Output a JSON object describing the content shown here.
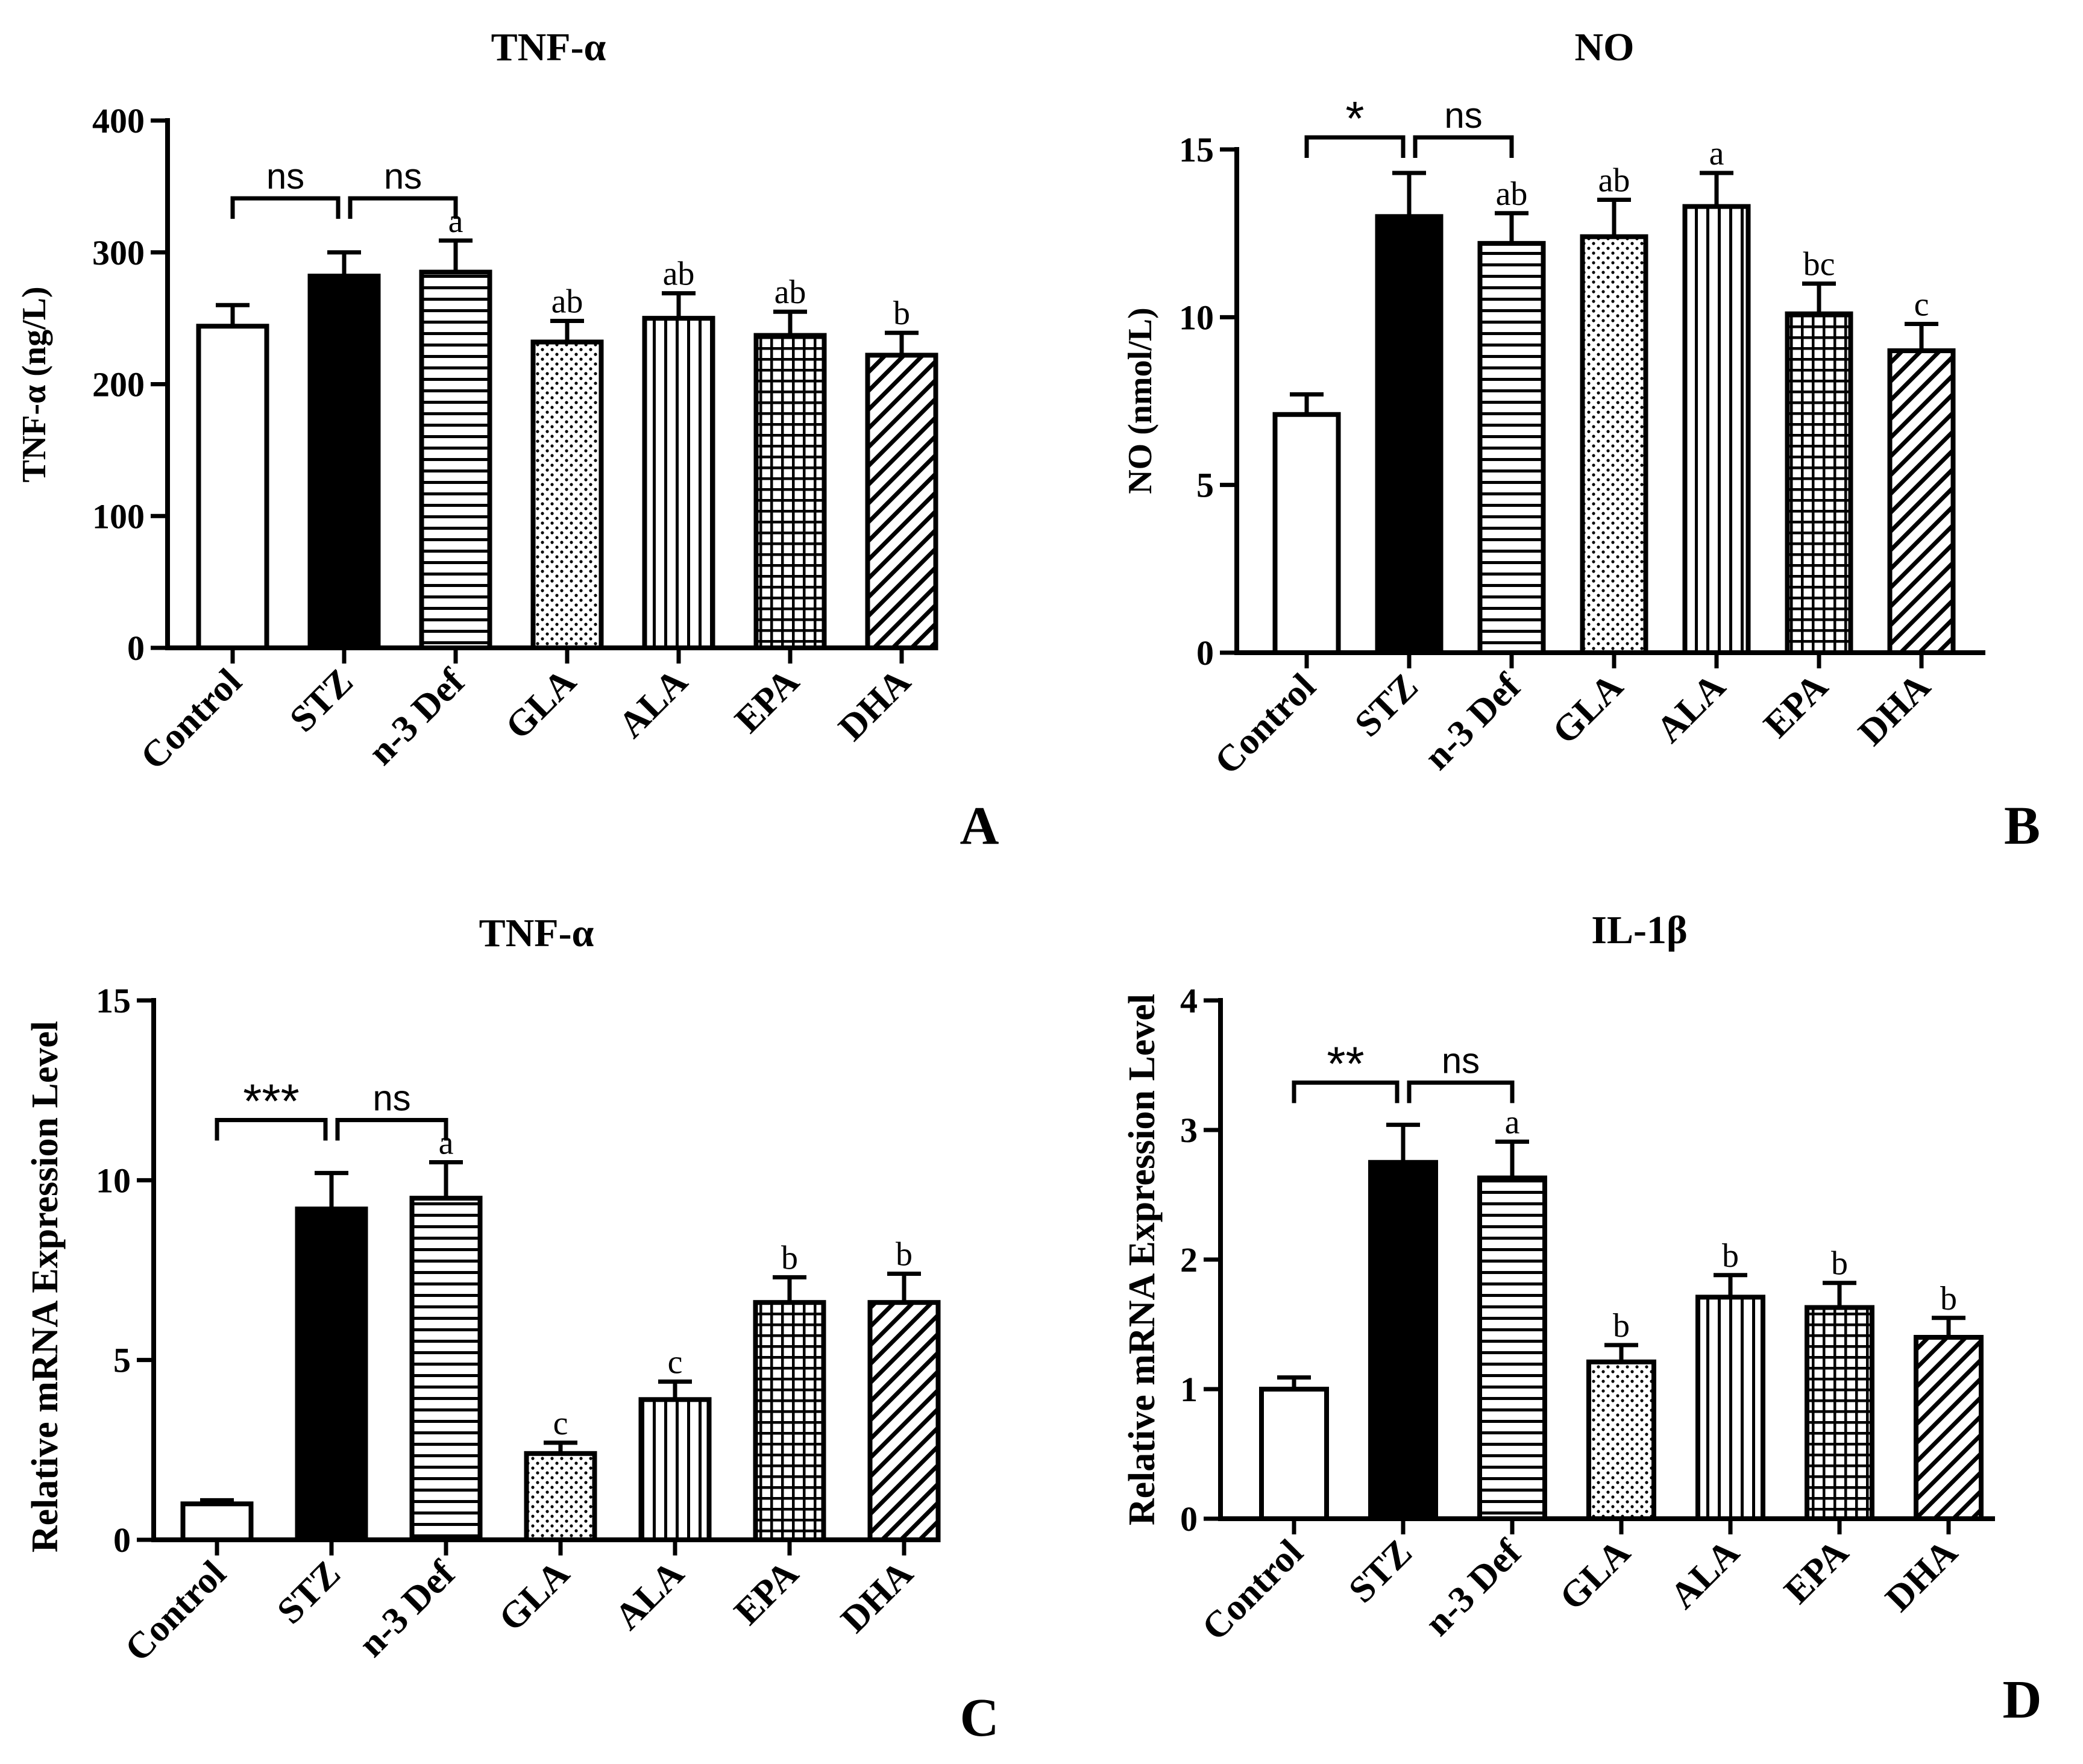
{
  "figure": {
    "panel_letters": [
      "A",
      "B",
      "C",
      "D"
    ]
  },
  "chart_data": [
    {
      "panel": "A",
      "type": "bar",
      "title": "TNF-α",
      "xlabel": "",
      "ylabel": "TNF-α (ng/L)",
      "ylim": [
        0,
        400
      ],
      "yticks": [
        0,
        100,
        200,
        300,
        400
      ],
      "categories": [
        "Control",
        "STZ",
        "n-3 Def",
        "GLA",
        "ALA",
        "EPA",
        "DHA"
      ],
      "values": [
        244,
        282,
        285,
        232,
        250,
        237,
        222
      ],
      "errors": [
        16,
        18,
        24,
        16,
        19,
        18,
        17
      ],
      "patterns": [
        "empty",
        "solid",
        "hlines",
        "dots",
        "vlines",
        "grid",
        "diag"
      ],
      "letters": [
        "",
        "",
        "a",
        "ab",
        "ab",
        "ab",
        "b"
      ],
      "comparisons": [
        {
          "from": 0,
          "to": 1,
          "label": "ns"
        },
        {
          "from": 1,
          "to": 2,
          "label": "ns"
        }
      ]
    },
    {
      "panel": "B",
      "type": "bar",
      "title": "NO",
      "xlabel": "",
      "ylabel": "NO (nmol/L)",
      "ylim": [
        0,
        15
      ],
      "yticks": [
        0,
        5,
        10,
        15
      ],
      "categories": [
        "Control",
        "STZ",
        "n-3 Def",
        "GLA",
        "ALA",
        "EPA",
        "DHA"
      ],
      "values": [
        7.1,
        13.0,
        12.2,
        12.4,
        13.3,
        10.1,
        9.0
      ],
      "errors": [
        0.6,
        1.3,
        0.9,
        1.1,
        1.0,
        0.9,
        0.8
      ],
      "patterns": [
        "empty",
        "solid",
        "hlines",
        "dots",
        "vlines",
        "grid",
        "diag"
      ],
      "letters": [
        "",
        "",
        "ab",
        "ab",
        "a",
        "bc",
        "c"
      ],
      "comparisons": [
        {
          "from": 0,
          "to": 1,
          "label": "*"
        },
        {
          "from": 1,
          "to": 2,
          "label": "ns"
        }
      ]
    },
    {
      "panel": "C",
      "type": "bar",
      "title": "TNF-α",
      "xlabel": "",
      "ylabel": "Relative mRNA Expression Level",
      "ylim": [
        0,
        15
      ],
      "yticks": [
        0,
        5,
        10,
        15
      ],
      "categories": [
        "Control",
        "STZ",
        "n-3 Def",
        "GLA",
        "ALA",
        "EPA",
        "DHA"
      ],
      "values": [
        1.0,
        9.2,
        9.5,
        2.4,
        3.9,
        6.6,
        6.6
      ],
      "errors": [
        0.1,
        1.0,
        1.0,
        0.3,
        0.5,
        0.7,
        0.8
      ],
      "patterns": [
        "empty",
        "solid",
        "hlines",
        "dots",
        "vlines",
        "grid",
        "diag"
      ],
      "letters": [
        "",
        "",
        "a",
        "c",
        "c",
        "b",
        "b"
      ],
      "comparisons": [
        {
          "from": 0,
          "to": 1,
          "label": "***"
        },
        {
          "from": 1,
          "to": 2,
          "label": "ns"
        }
      ]
    },
    {
      "panel": "D",
      "type": "bar",
      "title": "IL-1β",
      "xlabel": "",
      "ylabel": "Relative mRNA Expression Level",
      "ylim": [
        0,
        4
      ],
      "yticks": [
        0,
        1,
        2,
        3,
        4
      ],
      "categories": [
        "Control",
        "STZ",
        "n-3 Def",
        "GLA",
        "ALA",
        "EPA",
        "DHA"
      ],
      "values": [
        1.0,
        2.75,
        2.63,
        1.21,
        1.71,
        1.63,
        1.4
      ],
      "errors": [
        0.09,
        0.29,
        0.28,
        0.13,
        0.17,
        0.19,
        0.15
      ],
      "patterns": [
        "empty",
        "solid",
        "hlines",
        "dots",
        "vlines",
        "grid",
        "diag"
      ],
      "letters": [
        "",
        "",
        "a",
        "b",
        "b",
        "b",
        "b"
      ],
      "comparisons": [
        {
          "from": 0,
          "to": 1,
          "label": "**"
        },
        {
          "from": 1,
          "to": 2,
          "label": "ns"
        }
      ]
    }
  ]
}
